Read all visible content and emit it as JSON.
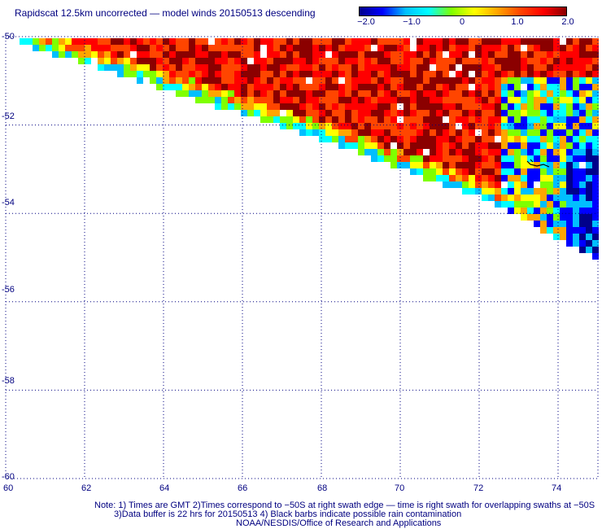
{
  "title": "Rapidscat 12.5km uncorrected — model winds 20150513 descending",
  "colorbar": {
    "labels": [
      "−2.0",
      "−1.0",
      "0",
      "1.0",
      "2.0"
    ],
    "range": [
      -2.0,
      2.0
    ],
    "colors": [
      "#00008b",
      "#0000ff",
      "#00bfff",
      "#00ffff",
      "#7fff00",
      "#ffff00",
      "#ffa500",
      "#ff4500",
      "#ff0000",
      "#8b0000"
    ]
  },
  "map": {
    "lat_labels": [
      "-50",
      "-52",
      "-54",
      "-56",
      "-58",
      "-60"
    ],
    "lon_labels": [
      "60",
      "62",
      "64",
      "66",
      "68",
      "70",
      "72",
      "74"
    ],
    "lon_range": [
      60,
      75
    ],
    "lat_range": [
      -60,
      -50
    ],
    "grid": "dotted",
    "rain_contamination_barb": "black-barb-icon"
  },
  "notes": {
    "line1": "Note: 1) Times are GMT 2)Times correspond to −50S at right swath edge — time is right swath for overlapping swaths at −50S",
    "line2": "3)Data buffer is 22 hrs for 20150513 4) Black barbs indicate possible rain contamination",
    "line3": "NOAA/NESDIS/Office of Research and Applications"
  }
}
